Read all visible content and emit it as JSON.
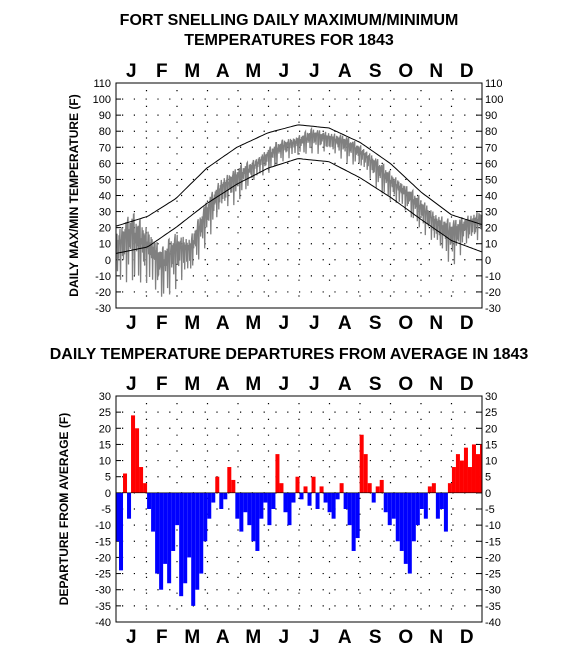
{
  "chart_data": [
    {
      "type": "line",
      "title": "FORT SNELLING DAILY MAXIMUM/MINIMUM TEMPERATURES FOR 1843",
      "title_lines": [
        "FORT SNELLING DAILY MAXIMUM/MINIMUM",
        "TEMPERATURES FOR 1843"
      ],
      "ylabel": "DAILY MAX/MIN TEMPERATURE (F)",
      "months": [
        "J",
        "F",
        "M",
        "A",
        "M",
        "J",
        "J",
        "A",
        "S",
        "O",
        "N",
        "D"
      ],
      "ylim": [
        -30,
        110
      ],
      "yticks": [
        -30,
        -20,
        -10,
        0,
        10,
        20,
        30,
        40,
        50,
        60,
        70,
        80,
        90,
        100,
        110
      ],
      "grid": "dotted",
      "series": [
        {
          "color": "#808080",
          "description": "daily maximum and minimum readings (semi-monthly approximation)",
          "x_day": [
            1,
            15,
            32,
            46,
            60,
            74,
            91,
            105,
            121,
            135,
            152,
            166,
            182,
            196,
            213,
            227,
            244,
            258,
            274,
            288,
            305,
            319,
            335,
            349,
            365
          ],
          "max_values": [
            20,
            30,
            22,
            8,
            18,
            15,
            38,
            52,
            58,
            62,
            70,
            75,
            78,
            82,
            80,
            78,
            72,
            65,
            55,
            48,
            38,
            30,
            25,
            28,
            32
          ],
          "min_values": [
            -20,
            -15,
            -22,
            -28,
            -20,
            -15,
            10,
            25,
            35,
            45,
            52,
            60,
            62,
            66,
            64,
            62,
            55,
            45,
            35,
            28,
            18,
            5,
            -5,
            5,
            10
          ]
        },
        {
          "color": "#000000",
          "description": "average daily maximum",
          "x_day": [
            1,
            32,
            60,
            91,
            121,
            152,
            182,
            213,
            244,
            274,
            305,
            335,
            365
          ],
          "values": [
            21,
            27,
            38,
            57,
            70,
            79,
            84,
            82,
            73,
            60,
            42,
            28,
            22
          ]
        },
        {
          "color": "#000000",
          "description": "average daily minimum",
          "x_day": [
            1,
            32,
            60,
            91,
            121,
            152,
            182,
            213,
            244,
            274,
            305,
            335,
            365
          ],
          "values": [
            4,
            8,
            20,
            35,
            47,
            57,
            63,
            61,
            51,
            39,
            25,
            12,
            5
          ]
        }
      ]
    },
    {
      "type": "bar",
      "title": "DAILY TEMPERATURE DEPARTURES FROM AVERAGE IN 1843",
      "ylabel": "DEPARTURE FROM AVERAGE (F)",
      "months": [
        "J",
        "F",
        "M",
        "A",
        "M",
        "J",
        "J",
        "A",
        "S",
        "O",
        "N",
        "D"
      ],
      "ylim": [
        -40,
        30
      ],
      "yticks": [
        -40,
        -35,
        -30,
        -25,
        -20,
        -15,
        -10,
        -5,
        0,
        5,
        10,
        15,
        20,
        25,
        30
      ],
      "grid": "dotted",
      "positive_color": "#ff0000",
      "negative_color": "#0000ff",
      "x_day": [
        1,
        4,
        8,
        12,
        16,
        20,
        24,
        28,
        32,
        36,
        40,
        44,
        48,
        52,
        56,
        60,
        64,
        68,
        72,
        76,
        80,
        84,
        88,
        92,
        96,
        100,
        104,
        108,
        112,
        116,
        120,
        124,
        128,
        132,
        136,
        140,
        144,
        148,
        152,
        156,
        160,
        164,
        168,
        172,
        176,
        180,
        184,
        188,
        192,
        196,
        200,
        204,
        208,
        212,
        216,
        220,
        224,
        228,
        232,
        236,
        240,
        244,
        248,
        252,
        256,
        260,
        264,
        268,
        272,
        276,
        280,
        284,
        288,
        292,
        296,
        300,
        304,
        308,
        312,
        316,
        320,
        324,
        328,
        332,
        336,
        340,
        344,
        348,
        352,
        356,
        360,
        364
      ],
      "values": [
        -15,
        -24,
        6,
        -8,
        24,
        20,
        8,
        3,
        -5,
        -12,
        -25,
        -30,
        -22,
        -28,
        -18,
        -10,
        -32,
        -28,
        -20,
        -35,
        -30,
        -25,
        -15,
        -8,
        -3,
        5,
        -5,
        -2,
        8,
        4,
        -8,
        -12,
        -6,
        -10,
        -15,
        -18,
        -8,
        -3,
        -10,
        -5,
        12,
        3,
        -6,
        -10,
        -3,
        5,
        -2,
        2,
        -4,
        5,
        -5,
        2,
        -3,
        -6,
        -8,
        -2,
        3,
        -5,
        -10,
        -18,
        -14,
        18,
        12,
        3,
        -3,
        2,
        4,
        -6,
        -10,
        -8,
        -15,
        -18,
        -22,
        -25,
        -15,
        -10,
        -5,
        -8,
        2,
        3,
        -8,
        -5,
        -12,
        3,
        8,
        12,
        10,
        14,
        8,
        15,
        12,
        15
      ]
    }
  ]
}
